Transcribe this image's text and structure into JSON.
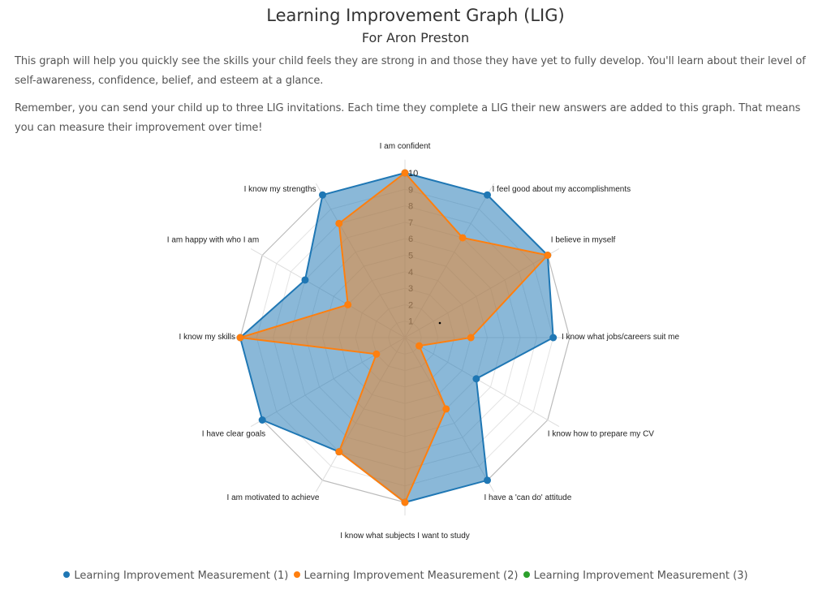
{
  "header": {
    "title": "Learning Improvement Graph (LIG)",
    "subtitle": "For Aron Preston"
  },
  "intro": {
    "paragraph1": "This graph will help you quickly see the skills your child feels they are strong in and those they have yet to fully develop. You'll learn about their level of self-awareness, confidence, belief, and esteem at a glance.",
    "paragraph2": "Remember, you can send your child up to three LIG invitations. Each time they complete a LIG their new answers are added to this graph. That means you can measure their improvement over time!"
  },
  "legend": {
    "items": [
      {
        "label": "Learning Improvement Measurement (1)",
        "color": "#1f77b4"
      },
      {
        "label": "Learning Improvement Measurement (2)",
        "color": "#ff7f0e"
      },
      {
        "label": "Learning Improvement Measurement (3)",
        "color": "#2ca02c"
      }
    ]
  },
  "chart_data": {
    "type": "radar",
    "title": "Learning Improvement Graph (LIG)",
    "categories": [
      "I am confident",
      "I feel good about my accomplishments",
      "I believe in myself",
      "I know what jobs/careers suit me",
      "I know how to prepare my CV",
      "I have a 'can do' attitude",
      "I know what subjects I want to study",
      "I am motivated to achieve",
      "I have clear goals",
      "I know my skills",
      "I am happy with who I am",
      "I know my strengths"
    ],
    "series": [
      {
        "name": "Learning Improvement Measurement (1)",
        "color": "#1f77b4",
        "values": [
          10,
          10,
          10,
          9,
          5,
          10,
          10,
          8,
          10,
          10,
          7,
          10
        ]
      },
      {
        "name": "Learning Improvement Measurement (2)",
        "color": "#ff7f0e",
        "values": [
          10,
          7,
          10,
          4,
          1,
          5,
          10,
          8,
          2,
          10,
          4,
          8
        ]
      },
      {
        "name": "Learning Improvement Measurement (3)",
        "color": "#2ca02c",
        "values": []
      }
    ],
    "range": [
      0,
      10
    ],
    "ticks": [
      1,
      2,
      3,
      4,
      5,
      6,
      7,
      8,
      9,
      10
    ],
    "grid": true,
    "legend_position": "bottom"
  }
}
